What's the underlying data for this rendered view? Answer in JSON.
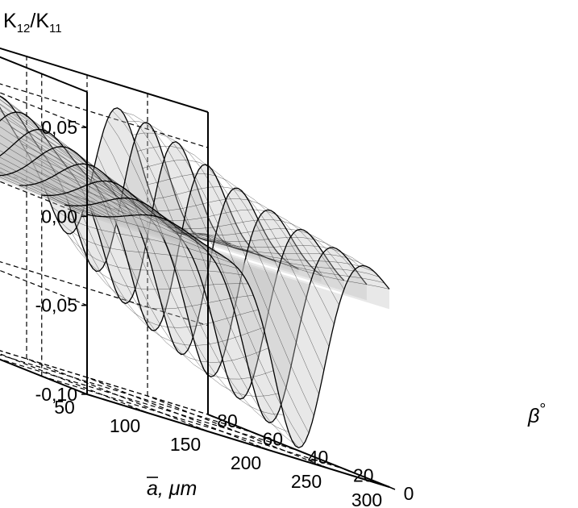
{
  "chart_data": {
    "type": "surface",
    "zlabel": {
      "main": "K",
      "sub1": "12",
      "sep": "/K",
      "sub2": "11"
    },
    "xlabel": {
      "var": "a",
      "unit": ", μm"
    },
    "ylabel": {
      "var": "β",
      "unit": "°"
    },
    "x_ticks": [
      "50",
      "100",
      "150",
      "200",
      "250",
      "300"
    ],
    "y_ticks": [
      "0",
      "20",
      "40",
      "60",
      "80"
    ],
    "z_ticks": [
      "0,05",
      "0,00",
      "-0,05",
      "-0,10"
    ],
    "xlim": [
      50,
      300
    ],
    "ylim": [
      0,
      80
    ],
    "zlim": [
      -0.1,
      0.07
    ],
    "grid": true,
    "surface": {
      "description_values": "K12/K11 vs mean radius a (um) and angle beta (deg)",
      "beta_ridges": [
        0,
        10,
        20,
        30,
        40,
        50,
        60,
        70,
        80
      ],
      "peak_near_a": 110,
      "peak_value_at_beta80": 0.05,
      "min_value_near_a": 225,
      "min_value_at_beta0": -0.095,
      "large_a_peak_value": 0.065
    },
    "colors": {
      "mesh": "#000000",
      "fill": "#bdbdbd",
      "grid": "#000000"
    }
  }
}
